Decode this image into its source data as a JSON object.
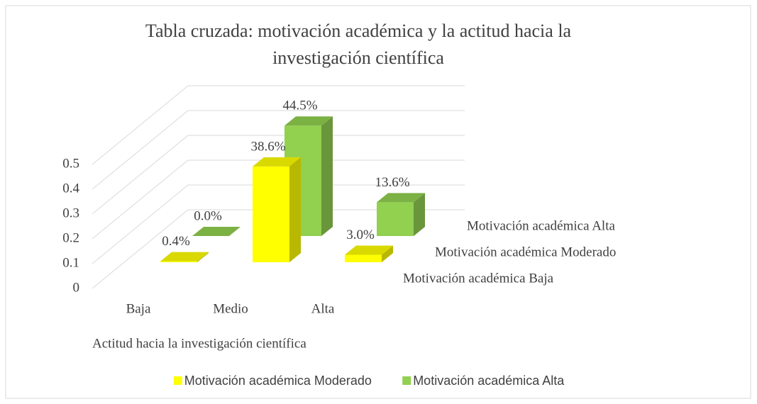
{
  "chart_data": {
    "type": "bar3d",
    "title": "Tabla cruzada: motivación académica y la actitud hacia la investigación científica",
    "title_lines": [
      "Tabla cruzada: motivación académica y la actitud hacia la",
      "investigación científica"
    ],
    "x_label": "Actitud hacia la investigación científica",
    "categories": [
      "Baja",
      "Medio",
      "Alta"
    ],
    "depth_categories": [
      "Motivación académica Baja",
      "Motivación académica Moderado",
      "Motivación académica Alta"
    ],
    "series": [
      {
        "name": "Motivación académica Moderado",
        "color": "#ffff00",
        "values": [
          0.004,
          0.386,
          0.03
        ],
        "value_labels": [
          "0.4%",
          "38.6%",
          "3.0%"
        ]
      },
      {
        "name": "Motivación académica Alta",
        "color": "#92d050",
        "values": [
          0.0,
          0.445,
          0.136
        ],
        "value_labels": [
          "0.0%",
          "44.5%",
          "13.6%"
        ]
      }
    ],
    "ylim": [
      0,
      0.5
    ],
    "yticks": [
      0,
      0.1,
      0.2,
      0.3,
      0.4,
      0.5
    ],
    "grid": true,
    "legend": "bottom"
  }
}
